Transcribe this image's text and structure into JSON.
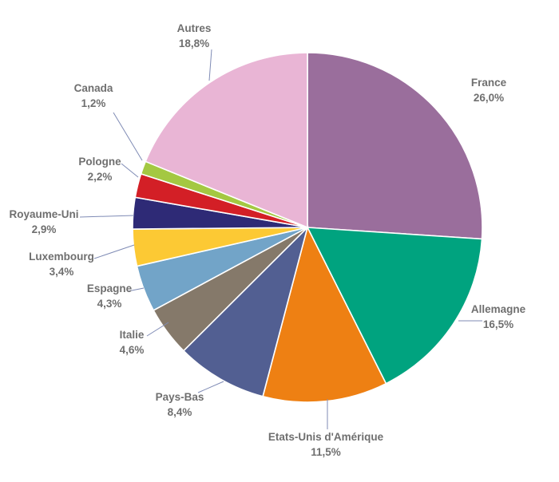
{
  "chart_data": {
    "type": "pie",
    "start_angle_deg": 0,
    "direction": "clockwise",
    "slices": [
      {
        "label": "France",
        "value_text": "26,0%",
        "value": 26.0,
        "color": "#9a6e9c"
      },
      {
        "label": "Allemagne",
        "value_text": "16,5%",
        "value": 16.5,
        "color": "#00a37f"
      },
      {
        "label": "Etats-Unis d'Amérique",
        "value_text": "11,5%",
        "value": 11.5,
        "color": "#ee8013"
      },
      {
        "label": "Pays-Bas",
        "value_text": "8,4%",
        "value": 8.4,
        "color": "#525f92"
      },
      {
        "label": "Italie",
        "value_text": "4,6%",
        "value": 4.6,
        "color": "#85796a"
      },
      {
        "label": "Espagne",
        "value_text": "4,3%",
        "value": 4.3,
        "color": "#72a4c8"
      },
      {
        "label": "Luxembourg",
        "value_text": "3,4%",
        "value": 3.4,
        "color": "#fcc934"
      },
      {
        "label": "Royaume-Uni",
        "value_text": "2,9%",
        "value": 2.9,
        "color": "#2e2a76"
      },
      {
        "label": "Pologne",
        "value_text": "2,2%",
        "value": 2.2,
        "color": "#d31f26"
      },
      {
        "label": "Canada",
        "value_text": "1,2%",
        "value": 1.2,
        "color": "#a4c842"
      },
      {
        "label": "Autres",
        "value_text": "18,8%",
        "value": 18.8,
        "color": "#e9b5d5"
      }
    ]
  }
}
